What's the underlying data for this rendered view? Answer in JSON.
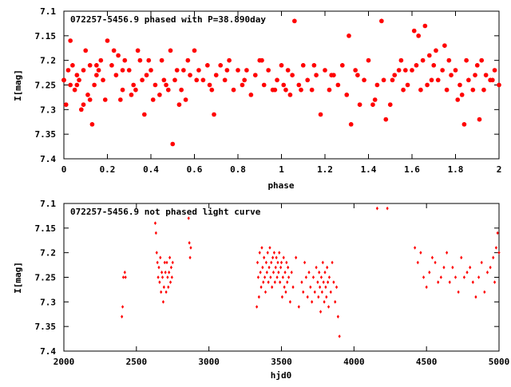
{
  "colors": {
    "points": "#ff0000",
    "frame": "#000000",
    "background": "#ffffff"
  },
  "chart_data": [
    {
      "type": "scatter",
      "title": "072257-5456.9 phased with P=38.890day",
      "xlabel": "phase",
      "ylabel": "I[mag]",
      "xlim": [
        0,
        2
      ],
      "ylim": [
        7.1,
        7.4
      ],
      "y_inverted": true,
      "grid": false,
      "marker": "star",
      "xticks": [
        0,
        0.2,
        0.4,
        0.6,
        0.8,
        1,
        1.2,
        1.4,
        1.6,
        1.8,
        2
      ],
      "yticks": [
        7.1,
        7.15,
        7.2,
        7.25,
        7.3,
        7.35,
        7.4
      ],
      "xtick_labels": [
        "0",
        "0.2",
        "0.4",
        "0.6",
        "0.8",
        "1",
        "1.2",
        "1.4",
        "1.6",
        "1.8",
        "2"
      ],
      "ytick_labels": [
        "7.1",
        "7.15",
        "7.2",
        "7.25",
        "7.3",
        "7.35",
        "7.4"
      ],
      "x": [
        0.0,
        0.01,
        0.02,
        0.03,
        0.04,
        0.05,
        0.06,
        0.07,
        0.08,
        0.09,
        0.1,
        0.11,
        0.12,
        0.13,
        0.14,
        0.15,
        0.16,
        0.17,
        0.18,
        0.2,
        0.22,
        0.24,
        0.25,
        0.26,
        0.27,
        0.28,
        0.3,
        0.31,
        0.32,
        0.34,
        0.35,
        0.36,
        0.37,
        0.38,
        0.39,
        0.4,
        0.42,
        0.44,
        0.45,
        0.46,
        0.48,
        0.49,
        0.5,
        0.51,
        0.52,
        0.54,
        0.55,
        0.56,
        0.57,
        0.58,
        0.6,
        0.62,
        0.64,
        0.66,
        0.68,
        0.69,
        0.7,
        0.72,
        0.74,
        0.76,
        0.78,
        0.8,
        0.82,
        0.84,
        0.86,
        0.88,
        0.9,
        0.92,
        0.94,
        0.96,
        0.98,
        1.0,
        1.01,
        1.02,
        1.04,
        1.05,
        1.06,
        1.08,
        1.1,
        1.12,
        1.14,
        1.16,
        1.18,
        1.2,
        1.22,
        1.24,
        1.26,
        1.28,
        1.3,
        1.31,
        1.32,
        1.34,
        1.36,
        1.38,
        1.4,
        1.42,
        1.44,
        1.46,
        1.47,
        1.48,
        1.5,
        1.52,
        1.54,
        1.55,
        1.56,
        1.58,
        1.6,
        1.61,
        1.62,
        1.63,
        1.64,
        1.65,
        1.66,
        1.67,
        1.68,
        1.7,
        1.71,
        1.72,
        1.74,
        1.75,
        1.76,
        1.78,
        1.8,
        1.81,
        1.82,
        1.84,
        1.85,
        1.86,
        1.88,
        1.9,
        1.91,
        1.92,
        1.94,
        1.96,
        1.98,
        2.0,
        0.0,
        0.03,
        0.06,
        0.09,
        0.12,
        0.15,
        0.19,
        0.23,
        0.27,
        0.33,
        0.41,
        0.47,
        0.53,
        0.61,
        0.67,
        0.75,
        0.83,
        0.91,
        0.97,
        1.03,
        1.09,
        1.15,
        1.23,
        1.35,
        1.43,
        1.51,
        1.57,
        1.69,
        1.77,
        1.83,
        1.89,
        1.93,
        1.97
      ],
      "y": [
        7.24,
        7.29,
        7.22,
        7.25,
        7.21,
        7.26,
        7.23,
        7.24,
        7.3,
        7.22,
        7.18,
        7.27,
        7.21,
        7.33,
        7.25,
        7.23,
        7.22,
        7.2,
        7.24,
        7.16,
        7.21,
        7.23,
        7.19,
        7.28,
        7.26,
        7.2,
        7.22,
        7.27,
        7.25,
        7.18,
        7.2,
        7.24,
        7.31,
        7.23,
        7.2,
        7.22,
        7.25,
        7.27,
        7.2,
        7.24,
        7.26,
        7.18,
        7.37,
        7.24,
        7.22,
        7.26,
        7.22,
        7.28,
        7.2,
        7.23,
        7.18,
        7.22,
        7.24,
        7.21,
        7.26,
        7.31,
        7.23,
        7.21,
        7.24,
        7.2,
        7.26,
        7.22,
        7.25,
        7.22,
        7.27,
        7.23,
        7.2,
        7.25,
        7.22,
        7.26,
        7.24,
        7.21,
        7.25,
        7.26,
        7.27,
        7.23,
        7.12,
        7.25,
        7.21,
        7.24,
        7.26,
        7.23,
        7.31,
        7.22,
        7.26,
        7.23,
        7.25,
        7.21,
        7.27,
        7.15,
        7.33,
        7.22,
        7.29,
        7.24,
        7.2,
        7.29,
        7.25,
        7.12,
        7.24,
        7.32,
        7.29,
        7.23,
        7.22,
        7.2,
        7.26,
        7.25,
        7.22,
        7.14,
        7.21,
        7.15,
        7.26,
        7.2,
        7.13,
        7.25,
        7.19,
        7.21,
        7.18,
        7.24,
        7.22,
        7.17,
        7.26,
        7.23,
        7.22,
        7.28,
        7.25,
        7.33,
        7.2,
        7.24,
        7.26,
        7.21,
        7.32,
        7.2,
        7.23,
        7.24,
        7.22,
        7.25,
        7.24,
        7.16,
        7.25,
        7.29,
        7.28,
        7.21,
        7.28,
        7.18,
        7.22,
        7.26,
        7.28,
        7.25,
        7.29,
        7.24,
        7.25,
        7.22,
        7.24,
        7.2,
        7.26,
        7.22,
        7.26,
        7.21,
        7.23,
        7.23,
        7.28,
        7.24,
        7.22,
        7.24,
        7.2,
        7.27,
        7.23,
        7.26,
        7.24
      ]
    },
    {
      "type": "scatter",
      "title": "072257-5456.9 not phased light curve",
      "xlabel": "hjd0",
      "ylabel": "I[mag]",
      "xlim": [
        2000,
        5000
      ],
      "ylim": [
        7.1,
        7.4
      ],
      "y_inverted": true,
      "grid": false,
      "marker": "dot",
      "xticks": [
        2000,
        2500,
        3000,
        3500,
        4000,
        4500,
        5000
      ],
      "yticks": [
        7.1,
        7.15,
        7.2,
        7.25,
        7.3,
        7.35,
        7.4
      ],
      "xtick_labels": [
        "2000",
        "2500",
        "3000",
        "3500",
        "4000",
        "4500",
        "5000"
      ],
      "ytick_labels": [
        "7.1",
        "7.15",
        "7.2",
        "7.25",
        "7.3",
        "7.35",
        "7.4"
      ],
      "x": [
        2400,
        2405,
        2410,
        2420,
        2425,
        2630,
        2635,
        2640,
        2645,
        2650,
        2655,
        2660,
        2665,
        2670,
        2675,
        2680,
        2685,
        2690,
        2695,
        2700,
        2705,
        2710,
        2715,
        2720,
        2725,
        2730,
        2735,
        2740,
        2745,
        2750,
        2860,
        2865,
        2870,
        2875,
        3330,
        3335,
        3340,
        3345,
        3350,
        3355,
        3360,
        3365,
        3370,
        3375,
        3380,
        3385,
        3390,
        3395,
        3400,
        3405,
        3410,
        3415,
        3420,
        3425,
        3430,
        3435,
        3440,
        3445,
        3450,
        3455,
        3460,
        3465,
        3470,
        3475,
        3480,
        3485,
        3490,
        3495,
        3500,
        3505,
        3510,
        3515,
        3520,
        3525,
        3530,
        3535,
        3540,
        3545,
        3550,
        3560,
        3570,
        3580,
        3600,
        3620,
        3640,
        3650,
        3660,
        3670,
        3680,
        3690,
        3700,
        3710,
        3720,
        3730,
        3740,
        3750,
        3755,
        3760,
        3765,
        3770,
        3775,
        3780,
        3785,
        3790,
        3795,
        3800,
        3805,
        3810,
        3815,
        3820,
        3825,
        3830,
        3840,
        3850,
        3860,
        3870,
        3880,
        3890,
        3900,
        4160,
        4230,
        4420,
        4440,
        4460,
        4480,
        4500,
        4520,
        4540,
        4560,
        4580,
        4600,
        4620,
        4640,
        4660,
        4680,
        4700,
        4720,
        4740,
        4760,
        4780,
        4800,
        4820,
        4840,
        4860,
        4880,
        4900,
        4920,
        4940,
        4960,
        4970,
        4980,
        4990,
        5000
      ],
      "y": [
        7.33,
        7.31,
        7.25,
        7.24,
        7.25,
        7.14,
        7.16,
        7.2,
        7.22,
        7.25,
        7.23,
        7.26,
        7.21,
        7.28,
        7.24,
        7.25,
        7.3,
        7.27,
        7.22,
        7.24,
        7.28,
        7.22,
        7.25,
        7.27,
        7.24,
        7.21,
        7.26,
        7.23,
        7.25,
        7.22,
        7.13,
        7.18,
        7.21,
        7.19,
        7.31,
        7.22,
        7.25,
        7.29,
        7.2,
        7.24,
        7.27,
        7.19,
        7.23,
        7.26,
        7.21,
        7.25,
        7.28,
        7.22,
        7.24,
        7.2,
        7.26,
        7.23,
        7.19,
        7.25,
        7.22,
        7.27,
        7.21,
        7.24,
        7.2,
        7.26,
        7.23,
        7.21,
        7.25,
        7.22,
        7.24,
        7.2,
        7.26,
        7.23,
        7.22,
        7.29,
        7.25,
        7.21,
        7.27,
        7.24,
        7.28,
        7.22,
        7.26,
        7.23,
        7.25,
        7.3,
        7.24,
        7.27,
        7.21,
        7.31,
        7.26,
        7.28,
        7.22,
        7.25,
        7.29,
        7.24,
        7.27,
        7.3,
        7.25,
        7.28,
        7.23,
        7.26,
        7.29,
        7.24,
        7.27,
        7.32,
        7.25,
        7.28,
        7.22,
        7.26,
        7.3,
        7.24,
        7.27,
        7.29,
        7.23,
        7.26,
        7.31,
        7.25,
        7.28,
        7.22,
        7.26,
        7.3,
        7.27,
        7.33,
        7.37,
        7.11,
        7.11,
        7.19,
        7.22,
        7.2,
        7.25,
        7.27,
        7.24,
        7.21,
        7.22,
        7.26,
        7.25,
        7.23,
        7.2,
        7.26,
        7.23,
        7.25,
        7.28,
        7.21,
        7.25,
        7.24,
        7.23,
        7.26,
        7.29,
        7.25,
        7.22,
        7.28,
        7.24,
        7.23,
        7.21,
        7.26,
        7.19,
        7.16,
        7.2
      ]
    }
  ]
}
